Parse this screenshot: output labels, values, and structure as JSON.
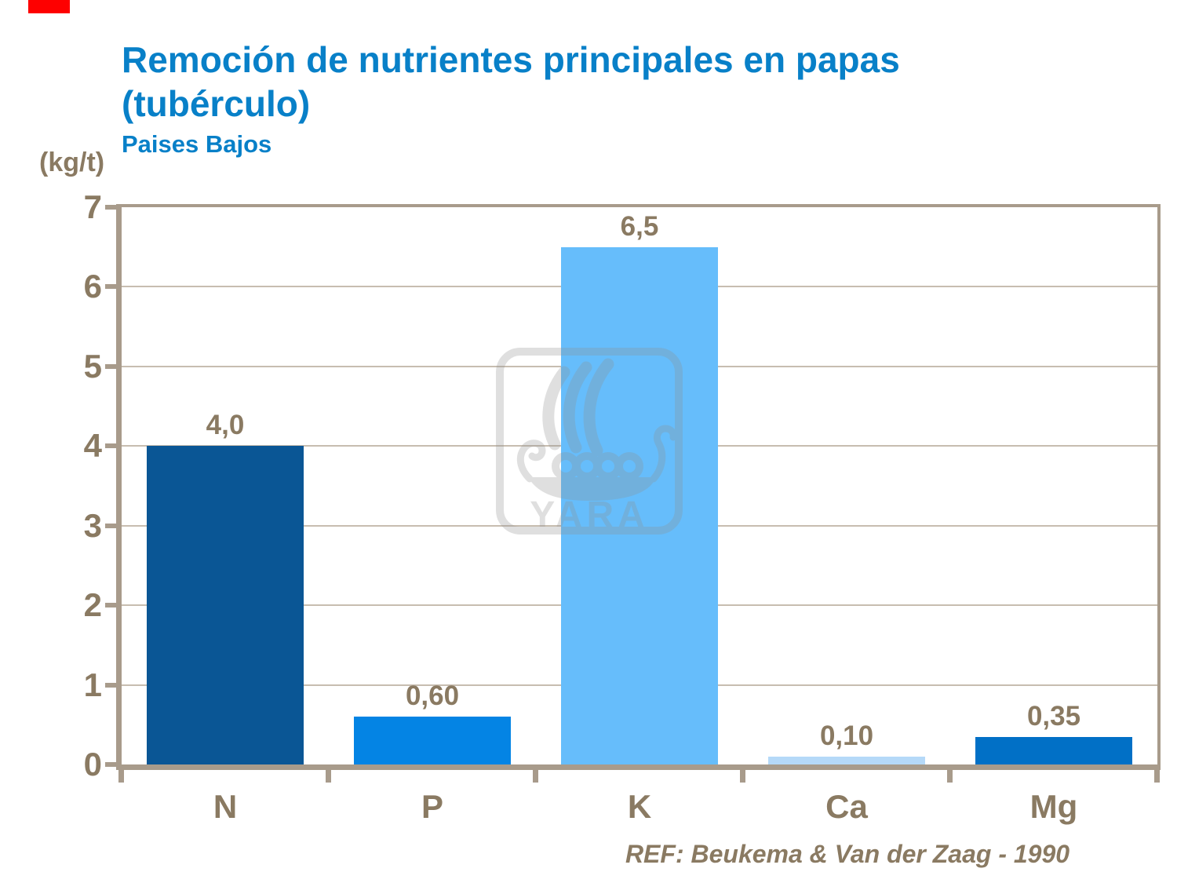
{
  "slide": {
    "marker_color": "#FE0000"
  },
  "title": {
    "line1": "Remoción de nutrientes principales en papas",
    "line2": "(tubérculo)",
    "subtitle": "Paises Bajos"
  },
  "reference": "REF: Beukema & Van der Zaag - 1990",
  "watermark": {
    "icon": "yara-viking-ship-logo",
    "text": "YARA"
  },
  "colors": {
    "title_blue": "#0880C8",
    "text_brown": "#8A7A62",
    "axis_line": "#A89B8B",
    "gridline": "#C7BDB0"
  },
  "chart_data": {
    "type": "bar",
    "categories": [
      "N",
      "P",
      "K",
      "Ca",
      "Mg"
    ],
    "values": [
      4.0,
      0.6,
      6.5,
      0.1,
      0.35
    ],
    "value_labels": [
      "4,0",
      "0,60",
      "6,5",
      "0,10",
      "0,35"
    ],
    "bar_colors": [
      "#0A5695",
      "#0484E4",
      "#66BDFB",
      "#B5D9F8",
      "#0170C6"
    ],
    "title": "Remoción de nutrientes principales en papas (tubérculo)",
    "subtitle": "Paises Bajos",
    "ylabel": "(kg/t)",
    "xlabel": "",
    "ylim": [
      0,
      7
    ],
    "yticks": [
      0,
      1,
      2,
      3,
      4,
      5,
      6,
      7
    ],
    "grid": true,
    "legend": false
  }
}
